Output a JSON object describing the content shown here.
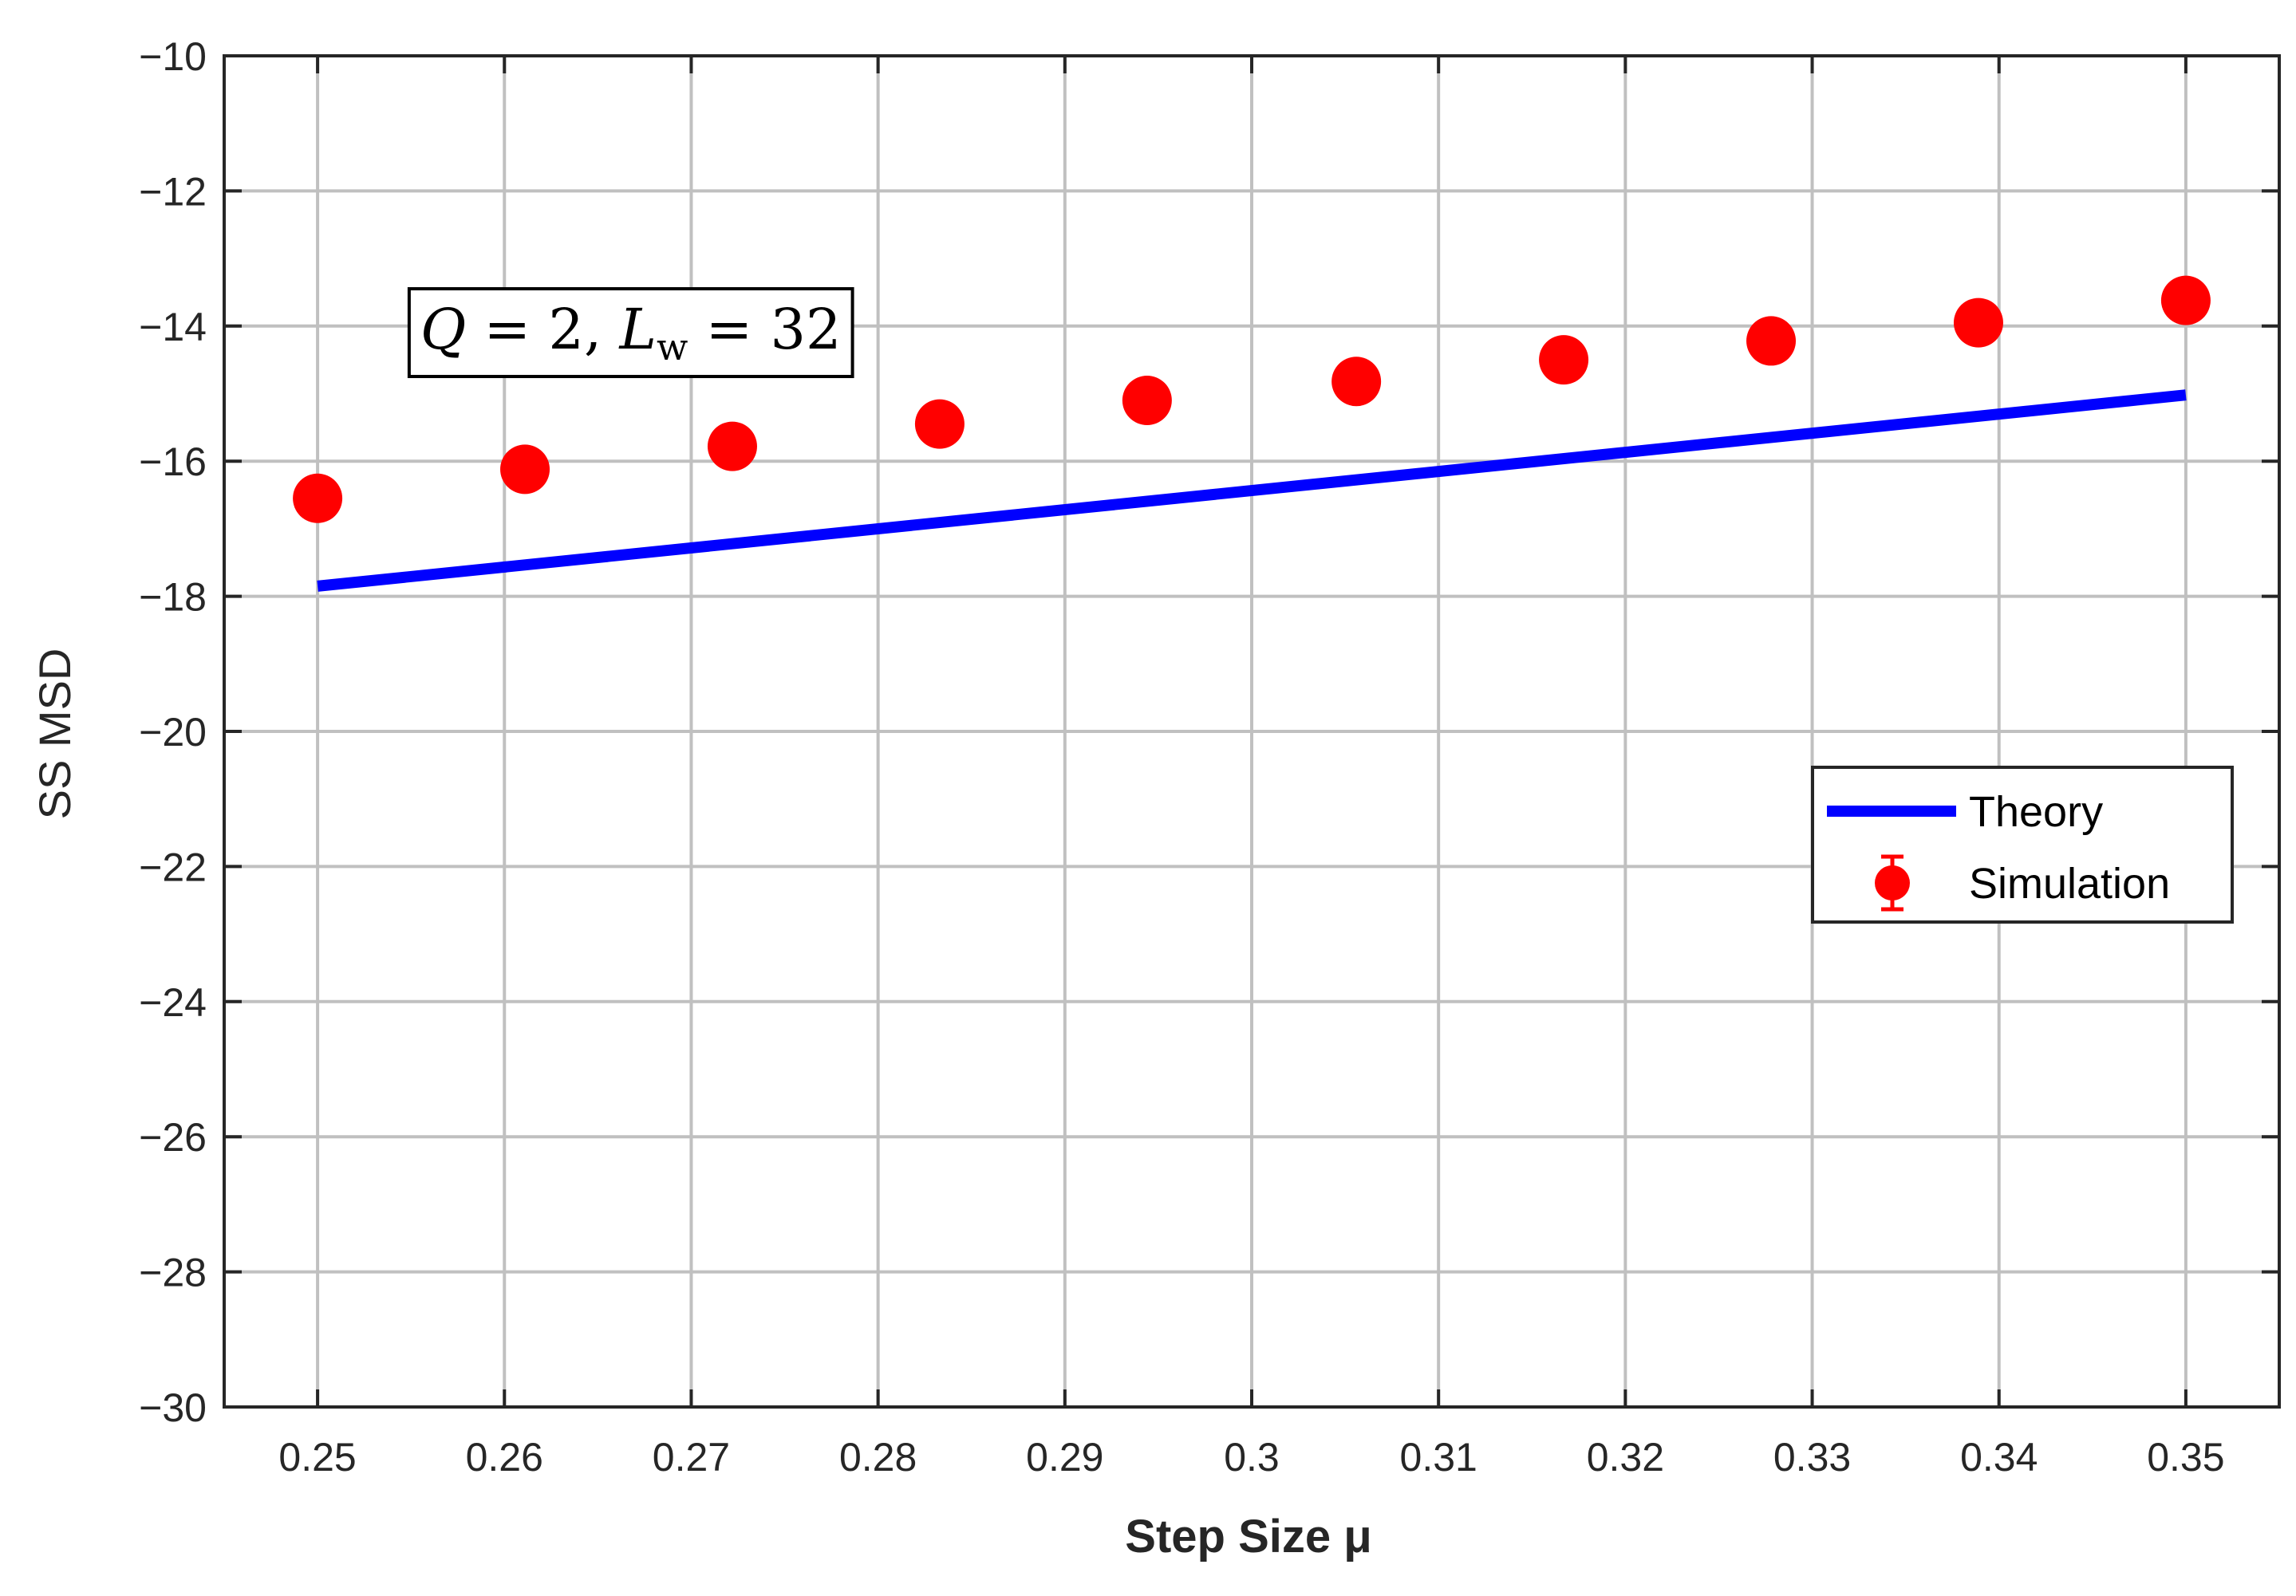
{
  "chart_data": {
    "type": "line",
    "xlabel": "Step Size μ",
    "ylabel": "SS MSD",
    "xlim": [
      0.245,
      0.355
    ],
    "ylim": [
      -30,
      -10
    ],
    "xticks": [
      0.25,
      0.26,
      0.27,
      0.28,
      0.29,
      0.3,
      0.31,
      0.32,
      0.33,
      0.34,
      0.35
    ],
    "xtick_labels": [
      "0.25",
      "0.26",
      "0.27",
      "0.28",
      "0.29",
      "0.3",
      "0.31",
      "0.32",
      "0.33",
      "0.34",
      "0.35"
    ],
    "yticks": [
      -30,
      -28,
      -26,
      -24,
      -22,
      -20,
      -18,
      -16,
      -14,
      -12,
      -10
    ],
    "ytick_labels": [
      "−30",
      "−28",
      "−26",
      "−24",
      "−22",
      "−20",
      "−18",
      "−16",
      "−14",
      "−12",
      "−10"
    ],
    "grid": true,
    "legend_position": "right",
    "annotation": {
      "Q": "Q",
      "eq1": " = 2, ",
      "L": "L",
      "sub": "w",
      "eq2": " = 32",
      "x": 0.2555,
      "y": -14.05
    },
    "series": [
      {
        "name": "Theory",
        "style": "line",
        "color": "#0000ff",
        "x": [
          0.25,
          0.35
        ],
        "y": [
          -17.85,
          -15.02
        ]
      },
      {
        "name": "Simulation",
        "style": "errorbar-marker",
        "color": "#ff0000",
        "x": [
          0.25,
          0.2611,
          0.2722,
          0.2833,
          0.2944,
          0.3056,
          0.3167,
          0.3278,
          0.3389,
          0.35
        ],
        "y": [
          -16.55,
          -16.12,
          -15.78,
          -15.45,
          -15.1,
          -14.82,
          -14.5,
          -14.22,
          -13.95,
          -13.62
        ],
        "err": [
          0.08,
          0.08,
          0.08,
          0.08,
          0.08,
          0.08,
          0.08,
          0.08,
          0.08,
          0.08
        ]
      }
    ]
  }
}
